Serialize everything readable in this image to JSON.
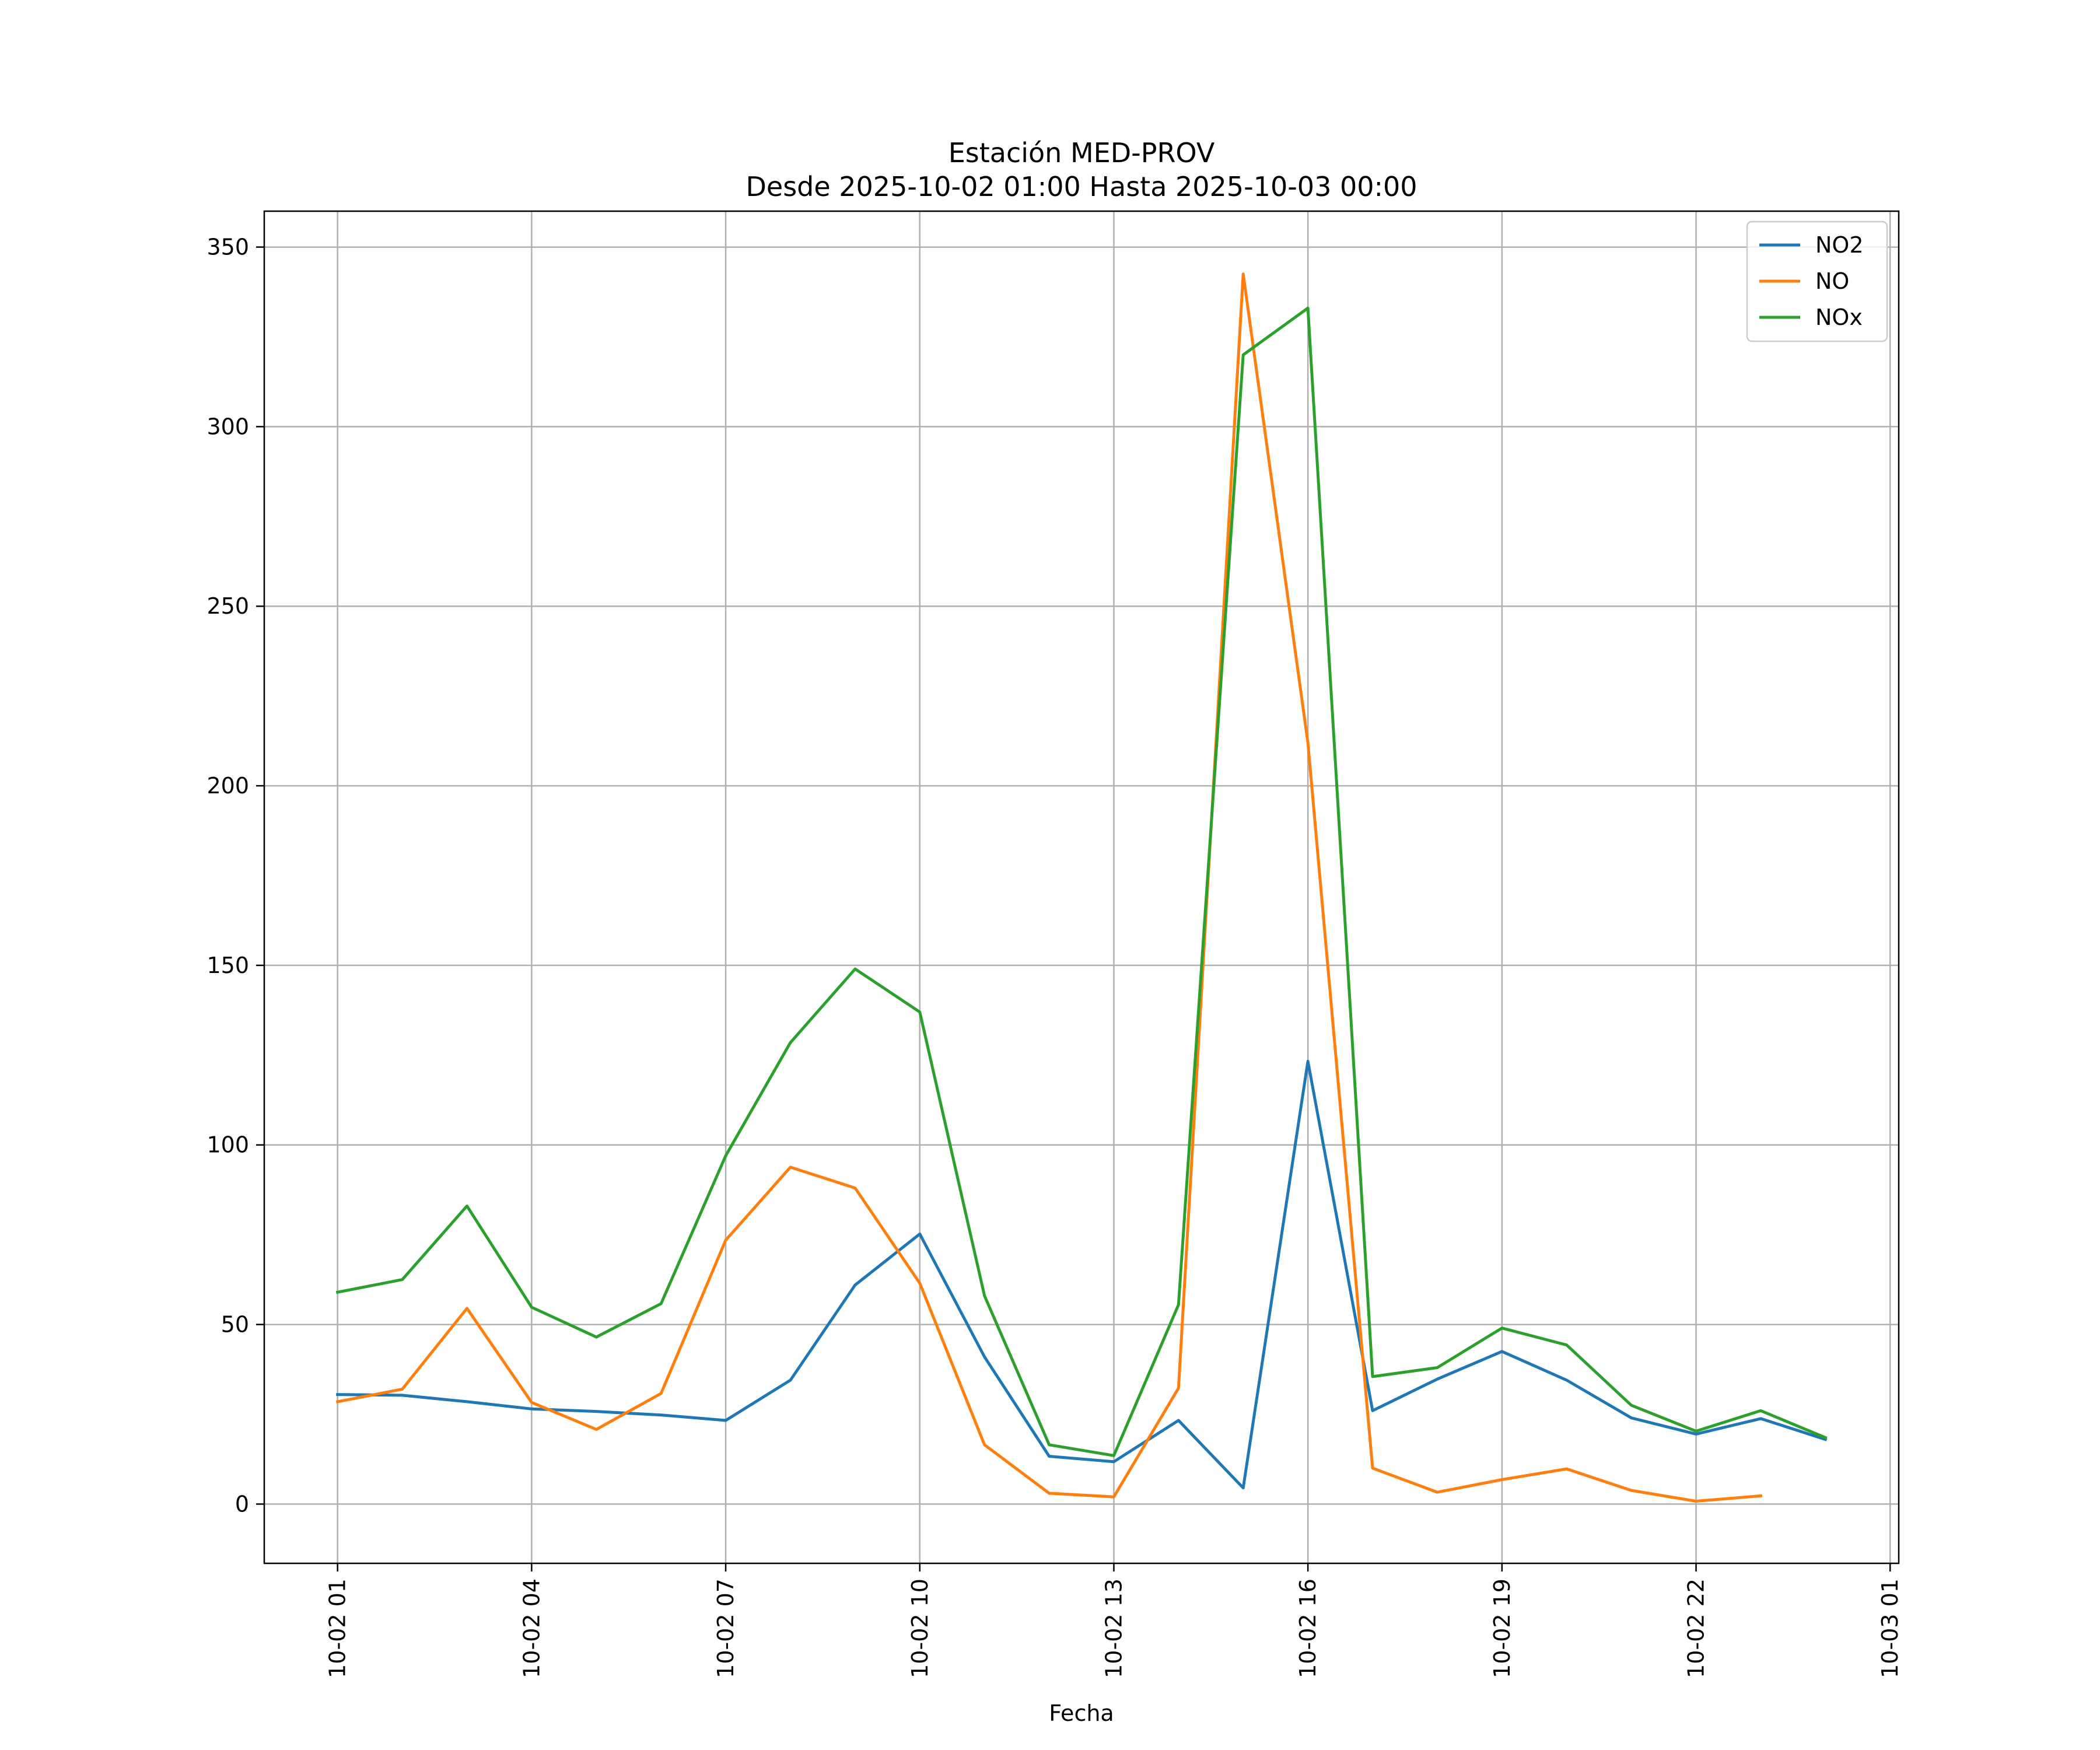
{
  "chart_data": {
    "type": "line",
    "title_line1": "Estación MED-PROV",
    "title_line2": "Desde 2025-10-02 01:00 Hasta 2025-10-03 00:00",
    "xlabel": "Fecha",
    "ylabel": "",
    "x": [
      "2025-10-02 01:00",
      "2025-10-02 02:00",
      "2025-10-02 03:00",
      "2025-10-02 04:00",
      "2025-10-02 05:00",
      "2025-10-02 06:00",
      "2025-10-02 07:00",
      "2025-10-02 08:00",
      "2025-10-02 09:00",
      "2025-10-02 10:00",
      "2025-10-02 11:00",
      "2025-10-02 12:00",
      "2025-10-02 13:00",
      "2025-10-02 14:00",
      "2025-10-02 15:00",
      "2025-10-02 16:00",
      "2025-10-02 17:00",
      "2025-10-02 18:00",
      "2025-10-02 19:00",
      "2025-10-02 20:00",
      "2025-10-02 21:00",
      "2025-10-02 22:00",
      "2025-10-02 23:00",
      "2025-10-03 00:00"
    ],
    "xlim": [
      "2025-10-01 23:52",
      "2025-10-03 01:08"
    ],
    "ylim": [
      -16.5,
      360
    ],
    "xticks": [
      {
        "value": "2025-10-02 01:00",
        "label": "10-02 01"
      },
      {
        "value": "2025-10-02 04:00",
        "label": "10-02 04"
      },
      {
        "value": "2025-10-02 07:00",
        "label": "10-02 07"
      },
      {
        "value": "2025-10-02 10:00",
        "label": "10-02 10"
      },
      {
        "value": "2025-10-02 13:00",
        "label": "10-02 13"
      },
      {
        "value": "2025-10-02 16:00",
        "label": "10-02 16"
      },
      {
        "value": "2025-10-02 19:00",
        "label": "10-02 19"
      },
      {
        "value": "2025-10-02 22:00",
        "label": "10-02 22"
      },
      {
        "value": "2025-10-03 01:00",
        "label": "10-03 01"
      }
    ],
    "yticks": [
      0,
      50,
      100,
      150,
      200,
      250,
      300,
      350
    ],
    "grid": true,
    "legend_position": "top-right",
    "series": [
      {
        "name": "NO2",
        "color": "#1f77b4",
        "values": [
          30.5,
          30.3,
          28.5,
          26.5,
          25.8,
          24.8,
          23.3,
          34.5,
          61,
          75.2,
          41,
          13.3,
          11.8,
          23.3,
          4.5,
          123.3,
          26,
          34.8,
          42.5,
          34.5,
          24,
          19.5,
          23.8,
          18
        ]
      },
      {
        "name": "NO",
        "color": "#ff7f0e",
        "values": [
          28.5,
          32,
          54.5,
          28.3,
          20.8,
          30.8,
          73.5,
          93.8,
          88,
          61.5,
          16.5,
          3,
          2,
          32.3,
          342.5,
          212,
          10,
          3.3,
          6.8,
          9.8,
          3.8,
          0.8,
          2.3,
          null
        ]
      },
      {
        "name": "NOx",
        "color": "#2ca02c",
        "values": [
          59,
          62.5,
          83,
          54.8,
          46.5,
          55.8,
          97,
          128.5,
          149,
          137,
          58,
          16.5,
          13.5,
          55.5,
          320,
          333,
          35.5,
          38,
          49,
          44.3,
          27.5,
          20.3,
          26,
          18.5
        ]
      }
    ]
  }
}
